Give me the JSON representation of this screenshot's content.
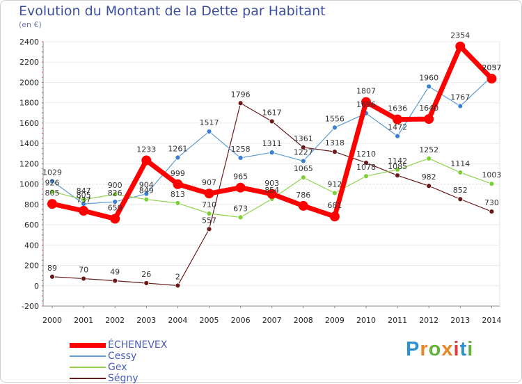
{
  "header": {
    "title": "Evolution du Montant de la Dette par Habitant",
    "subtitle": "(en €)"
  },
  "brand": {
    "text": "Proxiti",
    "letter_colors": [
      "#2f8fd0",
      "#e8862a",
      "#63b23d",
      "#e8862a",
      "#e03a3a",
      "#2f8fd0",
      "#63b23d"
    ]
  },
  "chart_data": {
    "type": "line",
    "title": "Evolution du Montant de la Dette par Habitant",
    "subtitle": "(en €)",
    "x": [
      "2000",
      "2001",
      "2002",
      "2003",
      "2004",
      "2005",
      "2006",
      "2007",
      "2008",
      "2009",
      "2010",
      "2011",
      "2012",
      "2013",
      "2014"
    ],
    "ylim": [
      -200,
      2400
    ],
    "yticks": [
      "-200",
      "0",
      "200",
      "400",
      "600",
      "800",
      "1000",
      "1200",
      "1400",
      "1600",
      "1800",
      "2000",
      "2200",
      "2400"
    ],
    "grid": "horizontal",
    "legend_position": "bottom-left",
    "series": [
      {
        "name": "ÉCHENEVEX",
        "color": "#ff0000",
        "values": [
          805,
          737,
          659,
          1233,
          999,
          907,
          965,
          903,
          786,
          681,
          1807,
          1636,
          1640,
          2354,
          2037
        ]
      },
      {
        "name": "Cessy",
        "color": "#5b9bd5",
        "values": [
          1029,
          805,
          826,
          904,
          1261,
          1517,
          1258,
          1311,
          1227,
          1556,
          1696,
          1472,
          1960,
          1767,
          2057
        ]
      },
      {
        "name": "Gex",
        "color": "#8fd14f",
        "values": [
          926,
          847,
          900,
          849,
          813,
          710,
          673,
          854,
          1065,
          912,
          1078,
          1142,
          1252,
          1114,
          1003
        ]
      },
      {
        "name": "Ségny",
        "color": "#6b1a1a",
        "values": [
          89,
          70,
          49,
          26,
          2,
          557,
          1796,
          1617,
          1361,
          1318,
          1210,
          1085,
          982,
          852,
          730
        ]
      }
    ]
  }
}
